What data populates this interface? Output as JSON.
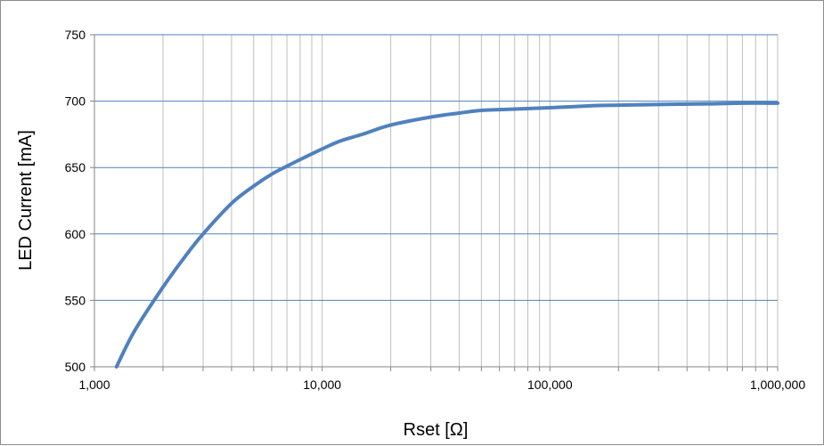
{
  "chart_data": {
    "type": "line",
    "xlabel": "Rset [Ω]",
    "ylabel": "LED Current [mA]",
    "x_scale": "log",
    "xlim": [
      1000,
      1000000
    ],
    "ylim": [
      500,
      750
    ],
    "x_ticks": [
      1000,
      10000,
      100000,
      1000000
    ],
    "x_tick_labels": [
      "1,000",
      "10,000",
      "100,000",
      "1,000,000"
    ],
    "y_ticks": [
      500,
      550,
      600,
      650,
      700,
      750
    ],
    "y_tick_labels": [
      "500",
      "550",
      "600",
      "650",
      "700",
      "750"
    ],
    "grid": true,
    "legend": "none",
    "series": [
      {
        "color": "#4f81bd",
        "x": [
          1250,
          1500,
          2000,
          2500,
          3000,
          4000,
          5000,
          6000,
          7000,
          8000,
          10000,
          12000,
          15000,
          20000,
          30000,
          40000,
          50000,
          70000,
          100000,
          150000,
          200000,
          300000,
          500000,
          700000,
          1000000
        ],
        "y": [
          500,
          527,
          560,
          583,
          600,
          623,
          636,
          645,
          651,
          656,
          664,
          670,
          675,
          682,
          688,
          691,
          693,
          694,
          695,
          696.5,
          697,
          697.5,
          698,
          698.5,
          698.5
        ]
      }
    ]
  },
  "colors": {
    "grid": "#bfbfbf",
    "major_grid": "#4f81bd",
    "axis": "#868686",
    "line": "#4f81bd"
  }
}
